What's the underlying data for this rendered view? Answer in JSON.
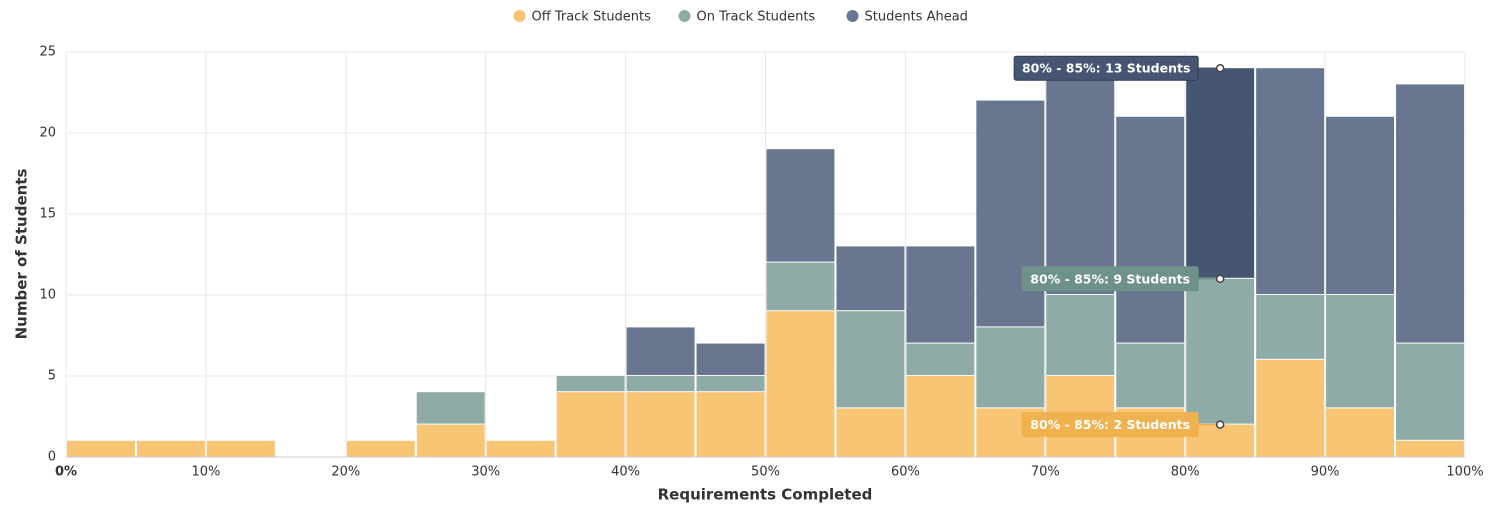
{
  "chart_data": {
    "type": "histogram",
    "xlabel": "Requirements Completed",
    "ylabel": "Number of Students",
    "bins": [
      0,
      5,
      10,
      15,
      20,
      25,
      30,
      35,
      40,
      45,
      50,
      55,
      60,
      65,
      70,
      75,
      80,
      85,
      90,
      95,
      100
    ],
    "series": [
      {
        "name": "Off Track Students",
        "color": "#f8c574",
        "values": [
          1,
          1,
          1,
          0,
          1,
          2,
          1,
          4,
          4,
          4,
          9,
          3,
          5,
          3,
          5,
          3,
          2,
          6,
          3,
          1
        ]
      },
      {
        "name": "On Track Students",
        "color": "#8eaba7",
        "values": [
          0,
          0,
          0,
          0,
          0,
          2,
          0,
          1,
          1,
          1,
          3,
          6,
          2,
          5,
          5,
          4,
          9,
          4,
          7,
          6
        ]
      },
      {
        "name": "Students Ahead",
        "color": "#68778f",
        "values": [
          0,
          0,
          0,
          0,
          0,
          0,
          0,
          0,
          3,
          2,
          7,
          4,
          6,
          14,
          14,
          14,
          13,
          14,
          11,
          16
        ]
      }
    ],
    "xlim": [
      0,
      100
    ],
    "xticks": [
      {
        "value": 0,
        "label": "0%"
      },
      {
        "value": 10,
        "label": "10%"
      },
      {
        "value": 20,
        "label": "20%"
      },
      {
        "value": 30,
        "label": "30%"
      },
      {
        "value": 40,
        "label": "40%"
      },
      {
        "value": 50,
        "label": "50%"
      },
      {
        "value": 60,
        "label": "60%"
      },
      {
        "value": 70,
        "label": "70%"
      },
      {
        "value": 80,
        "label": "80%"
      },
      {
        "value": 90,
        "label": "90%"
      },
      {
        "value": 100,
        "label": "100%"
      }
    ],
    "ylim": [
      0,
      25
    ],
    "yticks": [
      0,
      5,
      10,
      15,
      20,
      25
    ],
    "grid": true,
    "legend": "top",
    "annotations": [
      "80% - 85%: 13 Students",
      "80% - 85%: 9 Students",
      "80% - 85%: 2 Students"
    ]
  }
}
